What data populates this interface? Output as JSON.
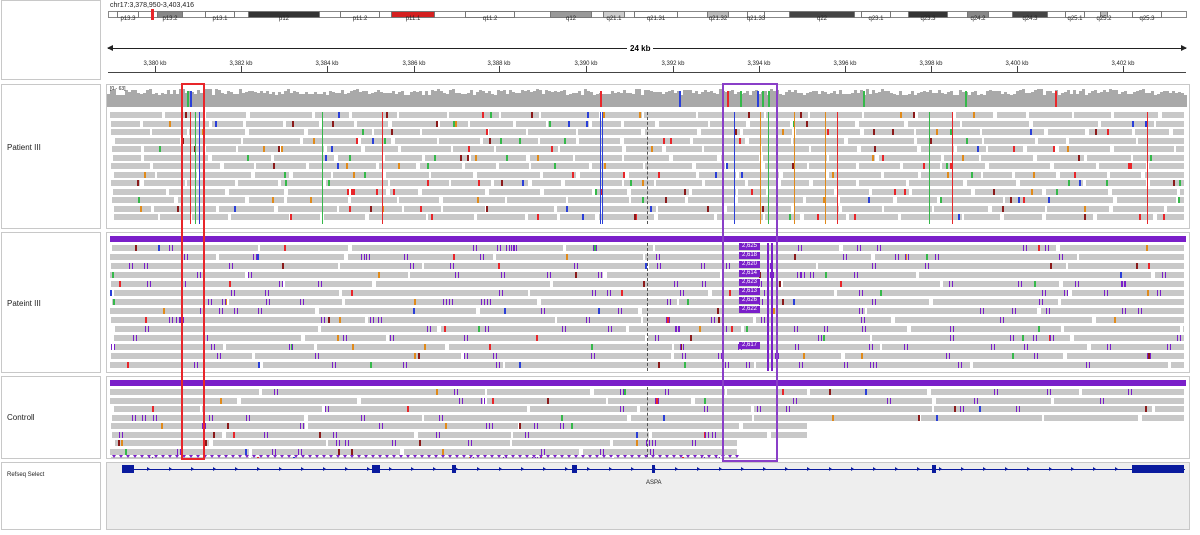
{
  "locus": "chr17:3,378,950-3,403,416",
  "span_label": "24 kb",
  "tick_labels": [
    "3,380 kb",
    "3,382 kb",
    "3,384 kb",
    "3,386 kb",
    "3,388 kb",
    "3,390 kb",
    "3,392 kb",
    "3,394 kb",
    "3,396 kb",
    "3,398 kb",
    "3,400 kb",
    "3,402 kb"
  ],
  "ideogram_bands": [
    "p13.3",
    "p13.2",
    "p13.1",
    "p12",
    "p11.2",
    "p11.1",
    "q11.2",
    "q12",
    "q21.1",
    "q21.31",
    "q21.32",
    "q21.33",
    "q22",
    "q23.1",
    "q23.3",
    "q24.2",
    "q24.3",
    "q25.1",
    "q25.2",
    "q25.3"
  ],
  "tracks": {
    "patient1": {
      "label": "Patient III",
      "coverage_range": "[0 - 63]"
    },
    "patient2": {
      "label": "Pateint III"
    },
    "control": {
      "label": "Controll"
    },
    "refseq": {
      "label": "Refseq Select",
      "gene": "ASPA"
    }
  },
  "insertion_sizes": [
    "2,625",
    "2,618",
    "2,620",
    "2,614",
    "2,623",
    "2,613",
    "2,626",
    "2,622",
    "2,617"
  ],
  "colors": {
    "red_highlight": "#e8262a",
    "purple_highlight": "#8a3fc8",
    "insertion": "#7a1fc9",
    "read": "#c8c8c8",
    "coverage": "#a9a9a9",
    "gene": "#0a1b9e"
  }
}
